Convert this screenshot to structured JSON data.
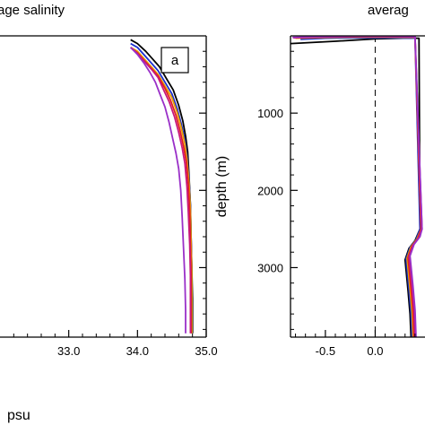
{
  "chart_data": [
    {
      "type": "line",
      "title": "rage salinity",
      "xlabel": "psu",
      "ylabel": "",
      "panel_label": "a",
      "xlim": [
        32.0,
        35.0
      ],
      "ylim": [
        0,
        3900
      ],
      "y_inverted": true,
      "x_ticks": [
        33.0,
        34.0,
        35.0
      ],
      "x_tick_labels": [
        "33.0",
        "34.0",
        "35.0"
      ],
      "y_ticks": [
        1000,
        2000,
        3000
      ],
      "y_tick_labels": [],
      "series": [
        {
          "color": "#000000",
          "x": [
            33.9,
            34.0,
            34.12,
            34.22,
            34.32,
            34.42,
            34.52,
            34.6,
            34.66,
            34.7,
            34.73,
            34.75,
            34.77,
            34.78,
            34.79,
            34.8,
            34.8
          ],
          "y": [
            50,
            100,
            200,
            300,
            400,
            550,
            700,
            900,
            1100,
            1300,
            1500,
            1800,
            2200,
            2600,
            3000,
            3400,
            3850
          ]
        },
        {
          "color": "#1a2fcf",
          "x": [
            33.9,
            34.0,
            34.1,
            34.2,
            34.3,
            34.4,
            34.5,
            34.58,
            34.64,
            34.69,
            34.72,
            34.75,
            34.77,
            34.78,
            34.79,
            34.79,
            34.79
          ],
          "y": [
            100,
            150,
            250,
            350,
            450,
            600,
            750,
            950,
            1150,
            1350,
            1550,
            1850,
            2200,
            2600,
            3000,
            3400,
            3850
          ]
        },
        {
          "color": "#e8a000",
          "x": [
            33.9,
            34.0,
            34.1,
            34.2,
            34.3,
            34.4,
            34.5,
            34.58,
            34.64,
            34.69,
            34.72,
            34.75,
            34.77,
            34.78,
            34.79,
            34.79,
            34.79
          ],
          "y": [
            150,
            200,
            300,
            400,
            500,
            650,
            800,
            1000,
            1200,
            1400,
            1600,
            1900,
            2250,
            2650,
            3050,
            3450,
            3850
          ]
        },
        {
          "color": "#e02020",
          "x": [
            33.9,
            34.0,
            34.1,
            34.2,
            34.3,
            34.4,
            34.48,
            34.56,
            34.62,
            34.67,
            34.71,
            34.74,
            34.76,
            34.77,
            34.78,
            34.78,
            34.78
          ],
          "y": [
            150,
            220,
            320,
            420,
            520,
            680,
            830,
            1030,
            1230,
            1430,
            1630,
            1930,
            2280,
            2680,
            3080,
            3480,
            3850
          ]
        },
        {
          "color": "#c8187c",
          "x": [
            33.9,
            34.0,
            34.1,
            34.2,
            34.3,
            34.38,
            34.46,
            34.54,
            34.6,
            34.65,
            34.69,
            34.72,
            34.74,
            34.76,
            34.77,
            34.77,
            34.77
          ],
          "y": [
            150,
            230,
            330,
            430,
            540,
            700,
            850,
            1050,
            1250,
            1450,
            1650,
            1950,
            2300,
            2700,
            3100,
            3500,
            3850
          ]
        },
        {
          "color": "#9a30c8",
          "x": [
            33.9,
            34.0,
            34.1,
            34.18,
            34.26,
            34.33,
            34.4,
            34.46,
            34.51,
            34.56,
            34.6,
            34.63,
            34.65,
            34.67,
            34.69,
            34.7,
            34.7
          ],
          "y": [
            150,
            240,
            360,
            470,
            600,
            760,
            920,
            1120,
            1320,
            1520,
            1720,
            2000,
            2350,
            2750,
            3150,
            3550,
            3850
          ]
        }
      ]
    },
    {
      "type": "line",
      "title": "averag",
      "xlabel": "",
      "ylabel": "depth (m)",
      "xlim": [
        -0.85,
        0.5
      ],
      "ylim": [
        0,
        3900
      ],
      "y_inverted": true,
      "x_ticks": [
        -0.5,
        0.0
      ],
      "x_tick_labels": [
        "-0.5",
        "0.0"
      ],
      "y_ticks": [
        1000,
        2000,
        3000
      ],
      "y_tick_labels": [
        "1000",
        "2000",
        "3000"
      ],
      "zero_line": true,
      "series": [
        {
          "color": "#000000",
          "x": [
            -0.85,
            -0.4,
            0.0,
            0.28,
            0.44,
            0.45,
            0.4,
            0.34,
            0.3,
            0.33,
            0.35,
            0.36
          ],
          "y": [
            100,
            70,
            40,
            30,
            30,
            2500,
            2650,
            2750,
            2900,
            3300,
            3600,
            3900
          ]
        },
        {
          "color": "#1a2fcf",
          "x": [
            -0.75,
            -0.5,
            -0.2,
            0.1,
            0.4,
            0.45,
            0.41,
            0.35,
            0.31,
            0.34,
            0.36,
            0.37
          ],
          "y": [
            45,
            30,
            25,
            25,
            30,
            2500,
            2640,
            2740,
            2890,
            3290,
            3590,
            3900
          ]
        },
        {
          "color": "#e8a000",
          "x": [
            -0.8,
            -0.5,
            -0.2,
            0.1,
            0.4,
            0.46,
            0.42,
            0.36,
            0.32,
            0.35,
            0.37,
            0.38
          ],
          "y": [
            30,
            20,
            15,
            15,
            20,
            2500,
            2630,
            2730,
            2880,
            3280,
            3580,
            3900
          ]
        },
        {
          "color": "#e02020",
          "x": [
            -0.82,
            -0.5,
            -0.2,
            0.1,
            0.4,
            0.46,
            0.43,
            0.37,
            0.33,
            0.36,
            0.38,
            0.39
          ],
          "y": [
            25,
            15,
            10,
            10,
            15,
            2500,
            2620,
            2720,
            2870,
            3270,
            3570,
            3900
          ]
        },
        {
          "color": "#c8187c",
          "x": [
            -0.82,
            -0.5,
            -0.2,
            0.1,
            0.4,
            0.47,
            0.44,
            0.38,
            0.34,
            0.37,
            0.39,
            0.4
          ],
          "y": [
            22,
            12,
            8,
            8,
            12,
            2500,
            2610,
            2710,
            2860,
            3260,
            3560,
            3900
          ]
        },
        {
          "color": "#9a30c8",
          "x": [
            -0.83,
            -0.5,
            -0.2,
            0.1,
            0.4,
            0.47,
            0.45,
            0.39,
            0.35,
            0.38,
            0.4,
            0.41
          ],
          "y": [
            20,
            10,
            5,
            5,
            10,
            2500,
            2600,
            2700,
            2850,
            3250,
            3550,
            3900
          ]
        }
      ]
    }
  ]
}
